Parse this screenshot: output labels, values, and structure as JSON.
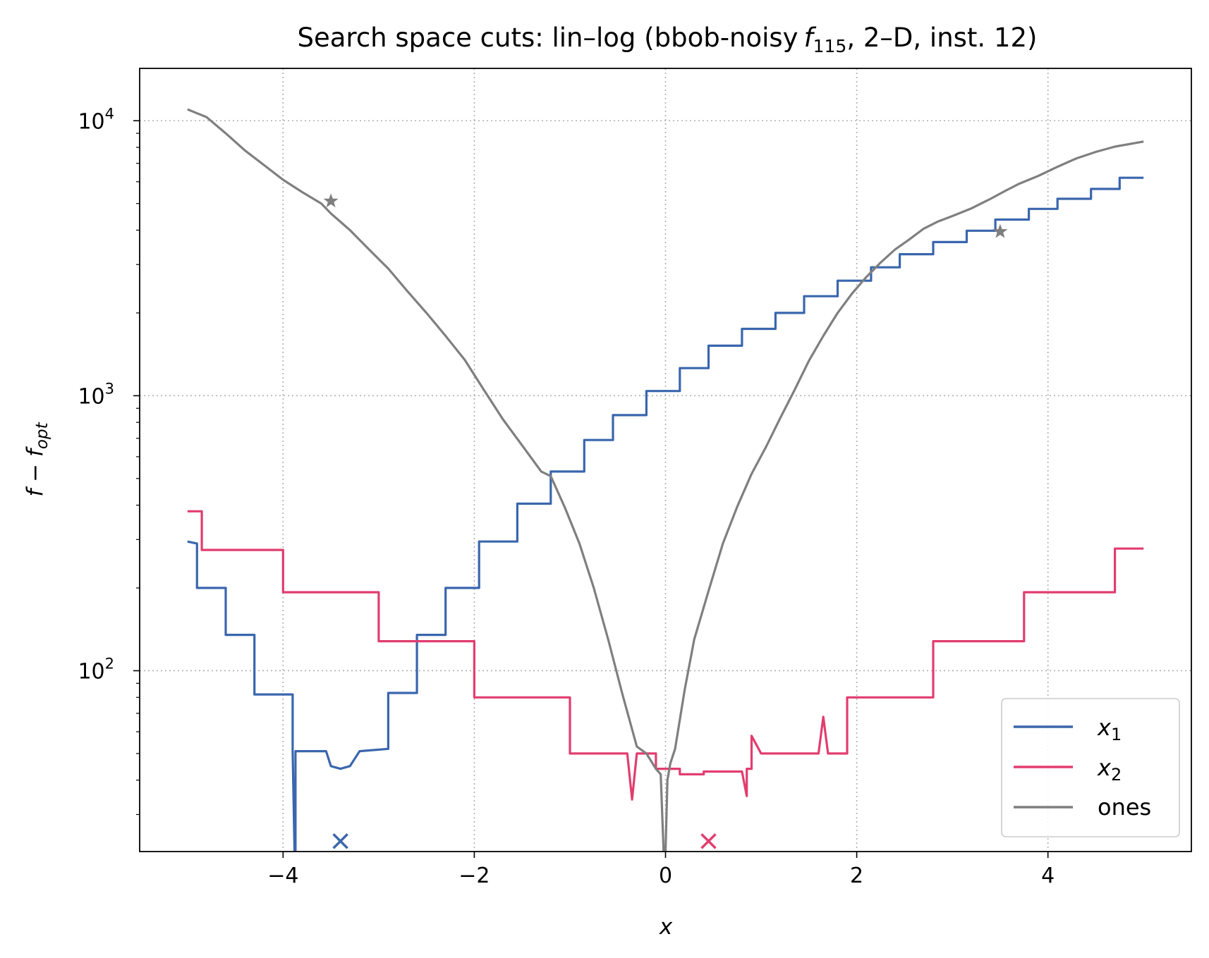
{
  "chart_data": {
    "type": "line",
    "title": "Search space cuts: lin–log (bbob-noisy",
    "title_fn": "f",
    "title_sub": "115",
    "title_rest": ", 2–D, inst. 12)",
    "xlabel": "x",
    "ylabel": "f − f",
    "ylabel_sub": "opt",
    "xlim": [
      -5.5,
      5.5
    ],
    "ylim": [
      22,
      15500
    ],
    "yscale": "log",
    "grid": true,
    "legend_position": "lower right",
    "x_ticks": [
      -4,
      -2,
      0,
      2,
      4
    ],
    "x_tick_labels": [
      "−4",
      "−2",
      "0",
      "2",
      "4"
    ],
    "y_ticks": [
      100,
      1000,
      10000
    ],
    "y_tick_base": "10",
    "y_tick_exps": [
      "2",
      "3",
      "4"
    ],
    "series": [
      {
        "name": "x",
        "name_sub": "1",
        "color": "#3a66ad",
        "x": [
          -5.0,
          -4.9,
          -4.9,
          -4.6,
          -4.6,
          -4.3,
          -4.3,
          -3.9,
          -3.9,
          -3.88,
          -3.87,
          -3.87,
          -3.55,
          -3.5,
          -3.4,
          -3.3,
          -3.2,
          -3.2,
          -2.9,
          -2.9,
          -2.6,
          -2.6,
          -2.3,
          -2.3,
          -1.95,
          -1.95,
          -1.55,
          -1.55,
          -1.2,
          -1.2,
          -0.85,
          -0.85,
          -0.55,
          -0.55,
          -0.2,
          -0.2,
          0.15,
          0.15,
          0.45,
          0.45,
          0.8,
          0.8,
          1.15,
          1.15,
          1.45,
          1.45,
          1.8,
          1.8,
          2.15,
          2.15,
          2.45,
          2.45,
          2.8,
          2.8,
          3.15,
          3.15,
          3.45,
          3.45,
          3.8,
          3.8,
          4.1,
          4.1,
          4.45,
          4.45,
          4.75,
          4.75,
          5.0
        ],
        "y": [
          295,
          290,
          200,
          200,
          135,
          135,
          82,
          82,
          51,
          22,
          22,
          51,
          51,
          45,
          44,
          45,
          51,
          51,
          52,
          83,
          83,
          135,
          135,
          200,
          200,
          295,
          295,
          405,
          405,
          530,
          530,
          690,
          690,
          850,
          850,
          1040,
          1040,
          1260,
          1260,
          1520,
          1520,
          1750,
          1750,
          2000,
          2000,
          2300,
          2300,
          2620,
          2620,
          2930,
          2930,
          3270,
          3270,
          3620,
          3620,
          3980,
          3980,
          4370,
          4370,
          4780,
          4780,
          5200,
          5200,
          5650,
          5650,
          6200,
          6200
        ]
      },
      {
        "name": "x",
        "name_sub": "2",
        "color": "#e23d6f",
        "x": [
          -5.0,
          -4.85,
          -4.85,
          -4.0,
          -4.0,
          -3.0,
          -3.0,
          -2.0,
          -2.0,
          -1.0,
          -1.0,
          -0.4,
          -0.35,
          -0.3,
          -0.3,
          -0.1,
          -0.1,
          0.15,
          0.15,
          0.4,
          0.4,
          0.8,
          0.85,
          0.85,
          0.9,
          0.9,
          1.0,
          1.0,
          1.3,
          1.6,
          1.65,
          1.7,
          1.9,
          1.9,
          2.8,
          2.8,
          3.75,
          3.75,
          4.7,
          4.7,
          5.0
        ],
        "y": [
          380,
          380,
          275,
          275,
          193,
          193,
          128,
          128,
          80,
          80,
          50,
          50,
          34,
          50,
          50,
          50,
          44,
          44,
          42,
          42,
          43,
          43,
          35,
          44,
          44,
          58,
          50,
          50,
          50,
          50,
          68,
          50,
          50,
          80,
          80,
          128,
          128,
          193,
          193,
          278,
          278
        ]
      },
      {
        "name": "ones",
        "color": "#7f7f7f",
        "x": [
          -5.0,
          -4.8,
          -4.6,
          -4.4,
          -4.2,
          -4.0,
          -3.8,
          -3.6,
          -3.5,
          -3.3,
          -3.1,
          -2.9,
          -2.7,
          -2.5,
          -2.3,
          -2.1,
          -1.9,
          -1.7,
          -1.5,
          -1.3,
          -1.2,
          -1.05,
          -0.9,
          -0.75,
          -0.6,
          -0.45,
          -0.3,
          -0.2,
          -0.1,
          -0.05,
          -0.02,
          0.0,
          0.02,
          0.05,
          0.1,
          0.2,
          0.3,
          0.45,
          0.6,
          0.75,
          0.9,
          1.05,
          1.2,
          1.35,
          1.5,
          1.65,
          1.8,
          1.95,
          2.1,
          2.25,
          2.4,
          2.55,
          2.7,
          2.85,
          3.0,
          3.2,
          3.4,
          3.55,
          3.7,
          3.9,
          4.1,
          4.3,
          4.5,
          4.7,
          5.0
        ],
        "y": [
          11000,
          10300,
          9000,
          7800,
          6900,
          6100,
          5500,
          5000,
          4600,
          4000,
          3400,
          2900,
          2400,
          2000,
          1650,
          1350,
          1050,
          820,
          660,
          530,
          510,
          390,
          290,
          200,
          130,
          82,
          53,
          50,
          44,
          42,
          22,
          22,
          40,
          46,
          52,
          85,
          130,
          195,
          290,
          395,
          520,
          650,
          830,
          1050,
          1340,
          1650,
          2000,
          2350,
          2700,
          3050,
          3400,
          3700,
          4050,
          4300,
          4500,
          4800,
          5200,
          5550,
          5900,
          6300,
          6800,
          7300,
          7700,
          8050,
          8400
        ]
      }
    ],
    "markers": [
      {
        "type": "star",
        "x": -3.5,
        "y": 5100,
        "color": "#7f7f7f"
      },
      {
        "type": "star",
        "x": 3.5,
        "y": 3950,
        "color": "#7f7f7f"
      },
      {
        "type": "cross",
        "x": -3.4,
        "y": 24,
        "color": "#3a66ad"
      },
      {
        "type": "cross",
        "x": 0.45,
        "y": 24,
        "color": "#e23d6f"
      }
    ]
  }
}
